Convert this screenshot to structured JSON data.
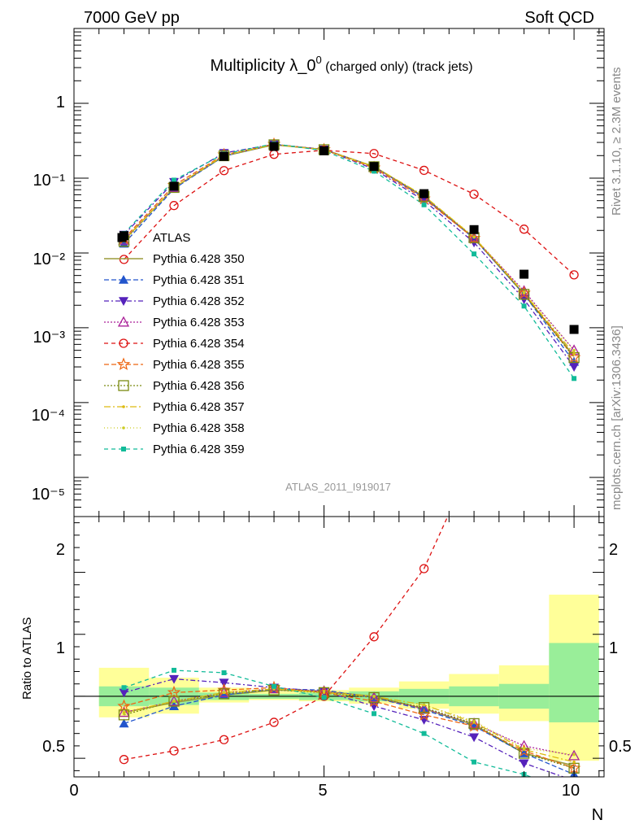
{
  "header": {
    "left": "7000 GeV pp",
    "right": "Soft QCD"
  },
  "title": {
    "main": "Multiplicity λ_0",
    "sup": "0",
    "rest": " (charged only) (track jets)"
  },
  "side_labels": {
    "rivet": "Rivet 3.1.10, ≥ 2.3M events",
    "mcplots": "mcplots.cern.ch [arXiv:1306.3436]"
  },
  "analysis_id": "ATLAS_2011_I919017",
  "ratio_ylabel": "Ratio to ATLAS",
  "x_axis_label": "N",
  "upper_tick_labels": {
    "one": "1",
    "m1": "10⁻¹",
    "m2": "10⁻²",
    "m3": "10⁻³",
    "m4": "10⁻⁴",
    "m5": "10⁻⁵"
  },
  "lower_tick_labels": {
    "t05": "0.5",
    "t1": "1",
    "t2": "2"
  },
  "x_tick_labels": {
    "t0": "0",
    "t5": "5",
    "t10": "10"
  },
  "chart_data": {
    "type": "scatter",
    "x_range": [
      0,
      10.6
    ],
    "upper_y_range": [
      3e-06,
      10
    ],
    "upper_y_scale": "log",
    "ratio_y_range": [
      0.35,
      2.45
    ],
    "x": [
      1,
      2,
      3,
      4,
      5,
      6,
      7,
      8,
      9,
      10
    ],
    "data": {
      "name": "ATLAS",
      "values": [
        0.017,
        0.078,
        0.195,
        0.265,
        0.232,
        0.143,
        0.062,
        0.0205,
        0.0052,
        0.00095
      ]
    },
    "ratio_bands": {
      "edges": [
        0.5,
        1.5,
        2.5,
        3.5,
        4.5,
        5.5,
        6.5,
        7.5,
        8.5,
        9.5,
        10.5
      ],
      "inner": [
        [
          0.92,
          1.08
        ],
        [
          0.93,
          1.07
        ],
        [
          0.97,
          1.03
        ],
        [
          0.98,
          1.02
        ],
        [
          0.97,
          1.03
        ],
        [
          0.96,
          1.04
        ],
        [
          0.94,
          1.06
        ],
        [
          0.92,
          1.08
        ],
        [
          0.9,
          1.1
        ],
        [
          0.79,
          1.43
        ]
      ],
      "outer": [
        [
          0.83,
          1.23
        ],
        [
          0.86,
          1.15
        ],
        [
          0.95,
          1.07
        ],
        [
          0.97,
          1.04
        ],
        [
          0.96,
          1.05
        ],
        [
          0.94,
          1.07
        ],
        [
          0.9,
          1.12
        ],
        [
          0.86,
          1.18
        ],
        [
          0.8,
          1.25
        ],
        [
          0.48,
          1.82
        ]
      ]
    },
    "series": [
      {
        "name": "Pythia 6.428 350",
        "color": "#9b9b3b",
        "dash": "",
        "marker": "none",
        "values": [
          0.0148,
          0.074,
          0.197,
          0.279,
          0.241,
          0.143,
          0.056,
          0.0158,
          0.0028,
          0.00042
        ],
        "ratio": [
          0.87,
          0.95,
          1.01,
          1.05,
          1.04,
          1.0,
          0.9,
          0.77,
          0.54,
          0.44
        ]
      },
      {
        "name": "Pythia 6.428 351",
        "color": "#2255cc",
        "dash": "6,3",
        "marker": "tri-up",
        "values": [
          0.0133,
          0.072,
          0.197,
          0.282,
          0.243,
          0.142,
          0.055,
          0.0156,
          0.0028,
          0.00035
        ],
        "ratio": [
          0.78,
          0.92,
          1.01,
          1.06,
          1.05,
          0.99,
          0.89,
          0.76,
          0.54,
          0.37
        ]
      },
      {
        "name": "Pythia 6.428 352",
        "color": "#5522bb",
        "dash": "6,3,2,3",
        "marker": "tri-down",
        "values": [
          0.0175,
          0.089,
          0.217,
          0.283,
          0.242,
          0.132,
          0.05,
          0.0138,
          0.0024,
          0.0003
        ],
        "ratio": [
          1.03,
          1.14,
          1.11,
          1.07,
          1.04,
          0.92,
          0.81,
          0.67,
          0.46,
          0.32
        ]
      },
      {
        "name": "Pythia 6.428 353",
        "color": "#aa2299",
        "dash": "2,2",
        "marker": "tri-up-open",
        "values": [
          0.0148,
          0.075,
          0.201,
          0.281,
          0.242,
          0.142,
          0.056,
          0.016,
          0.0031,
          0.0005
        ],
        "ratio": [
          0.87,
          0.96,
          1.03,
          1.06,
          1.04,
          0.99,
          0.9,
          0.78,
          0.6,
          0.52
        ]
      },
      {
        "name": "Pythia 6.428 354",
        "color": "#dd1111",
        "dash": "5,4",
        "marker": "circle-open",
        "values": [
          0.0082,
          0.043,
          0.126,
          0.208,
          0.236,
          0.213,
          0.127,
          0.061,
          0.0208,
          0.0051
        ],
        "ratio": [
          0.49,
          0.56,
          0.65,
          0.79,
          1.0,
          1.48,
          2.03,
          2.92,
          4.0,
          5.4
        ]
      },
      {
        "name": "Pythia 6.428 355",
        "color": "#ee6611",
        "dash": "6,3",
        "marker": "star-open",
        "values": [
          0.0156,
          0.08,
          0.205,
          0.283,
          0.24,
          0.137,
          0.053,
          0.0157,
          0.0029,
          0.0004
        ],
        "ratio": [
          0.92,
          1.03,
          1.05,
          1.07,
          1.03,
          0.96,
          0.85,
          0.76,
          0.56,
          0.42
        ]
      },
      {
        "name": "Pythia 6.428 356",
        "color": "#7a8a11",
        "dash": "2,2",
        "marker": "square-open",
        "values": [
          0.0143,
          0.075,
          0.199,
          0.279,
          0.24,
          0.142,
          0.057,
          0.016,
          0.0028,
          0.0004
        ],
        "ratio": [
          0.85,
          0.96,
          1.02,
          1.05,
          1.03,
          0.99,
          0.91,
          0.78,
          0.54,
          0.42
        ]
      },
      {
        "name": "Pythia 6.428 357",
        "color": "#ddbb11",
        "dash": "8,3,2,3",
        "marker": "dot",
        "values": [
          0.0148,
          0.075,
          0.201,
          0.281,
          0.24,
          0.143,
          0.058,
          0.0162,
          0.0029,
          0.00045
        ],
        "ratio": [
          0.87,
          0.96,
          1.03,
          1.06,
          1.03,
          1.0,
          0.93,
          0.79,
          0.57,
          0.47
        ]
      },
      {
        "name": "Pythia 6.428 358",
        "color": "#cccc22",
        "dash": "1,3",
        "marker": "dot",
        "values": [
          0.0145,
          0.075,
          0.2,
          0.281,
          0.241,
          0.143,
          0.058,
          0.0163,
          0.003,
          0.0005
        ],
        "ratio": [
          0.86,
          0.96,
          1.03,
          1.06,
          1.04,
          1.0,
          0.93,
          0.8,
          0.58,
          0.53
        ]
      },
      {
        "name": "Pythia 6.428 359",
        "color": "#11bb99",
        "dash": "5,4",
        "marker": "square",
        "values": [
          0.0182,
          0.094,
          0.21,
          0.288,
          0.233,
          0.124,
          0.044,
          0.0097,
          0.00195,
          0.00021
        ],
        "ratio": [
          1.07,
          1.21,
          1.19,
          1.08,
          0.99,
          0.86,
          0.7,
          0.47,
          0.37,
          0.22
        ]
      }
    ]
  }
}
